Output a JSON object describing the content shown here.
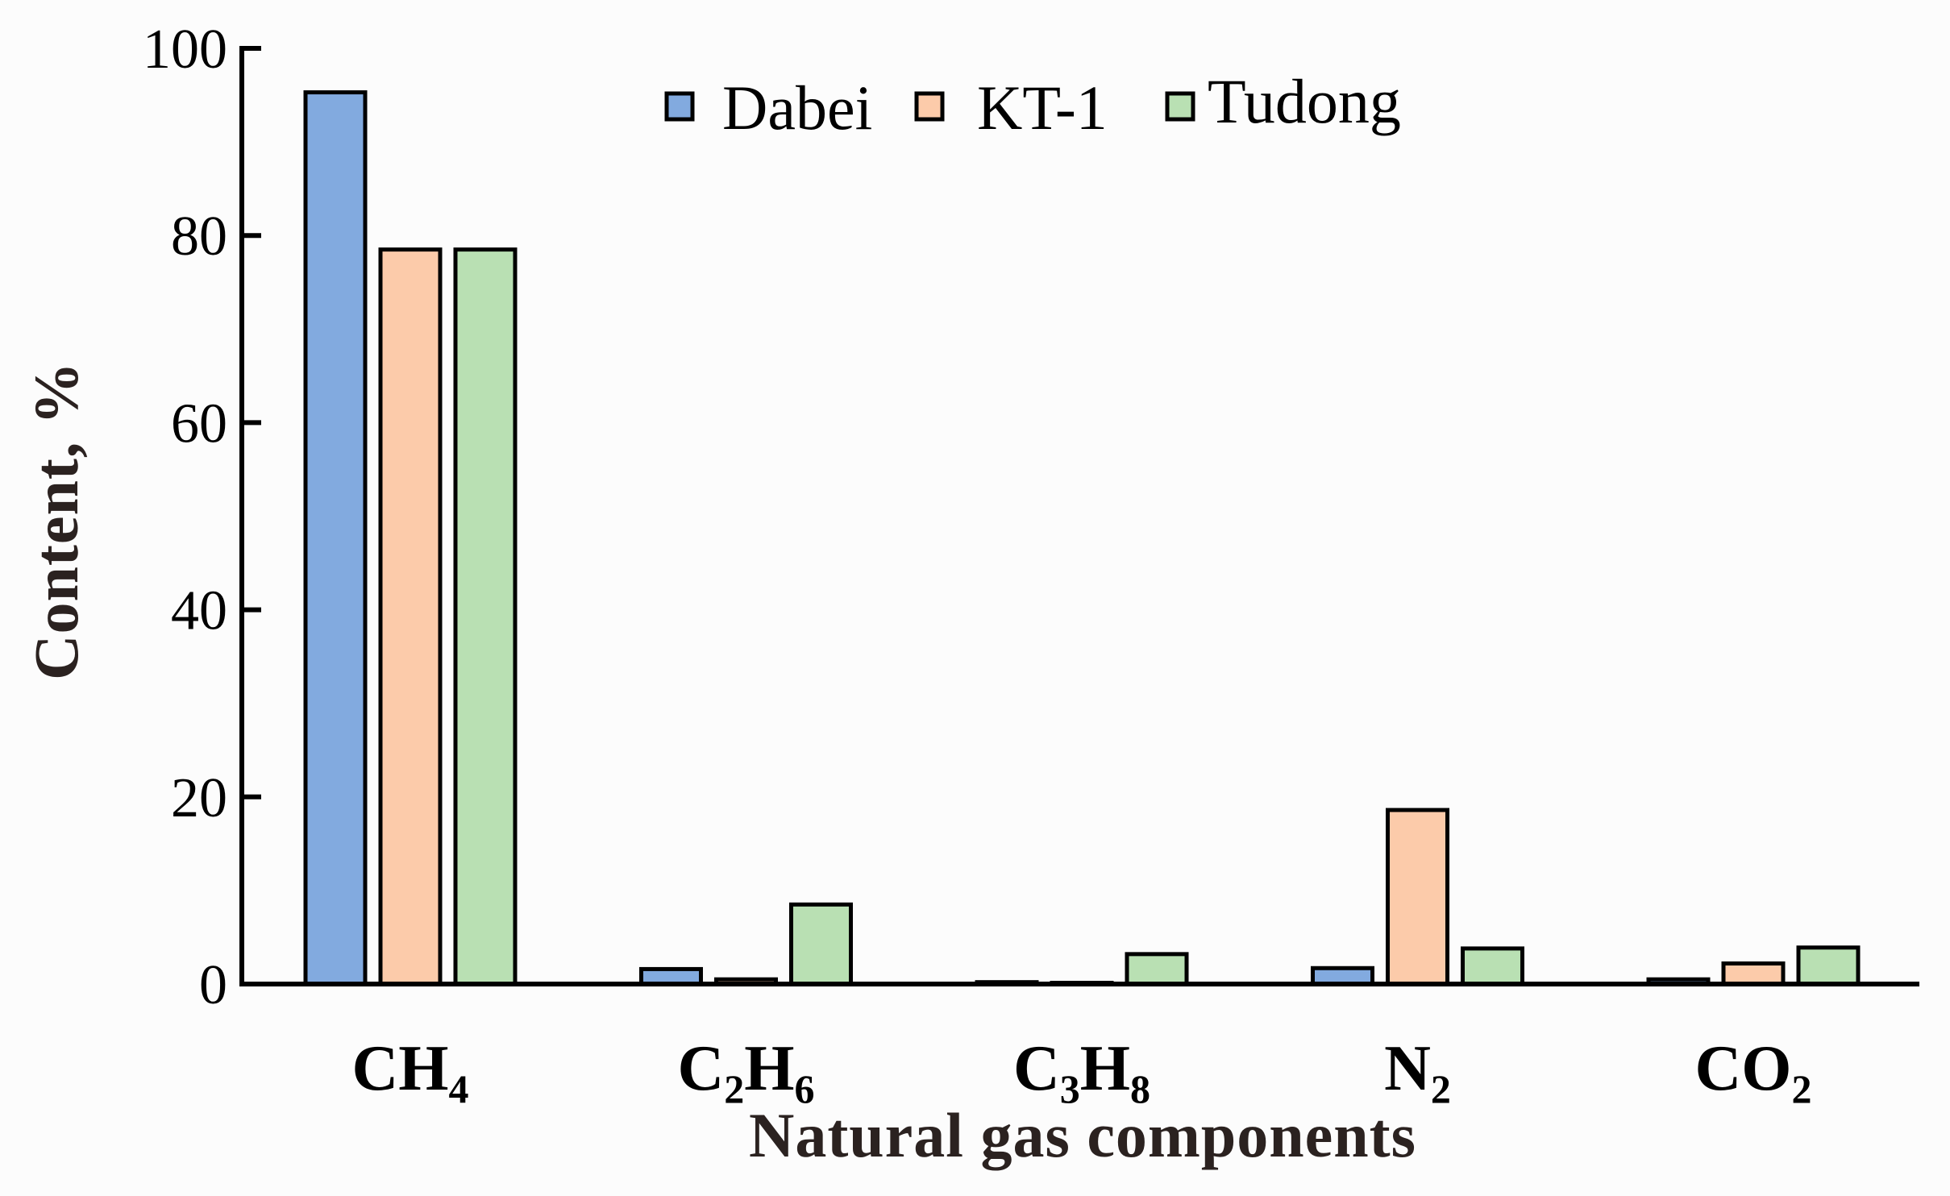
{
  "chart_data": {
    "type": "bar",
    "title": "",
    "xlabel": "Natural gas components",
    "ylabel": "Content, %",
    "ylim": [
      0,
      100
    ],
    "yticks": [
      0,
      20,
      40,
      60,
      80,
      100
    ],
    "grid": false,
    "legend_position": "top-center",
    "categories": [
      "CH4",
      "C2H6",
      "C3H8",
      "N2",
      "CO2"
    ],
    "category_labels": [
      [
        {
          "t": "CH",
          "sub": false
        },
        {
          "t": "4",
          "sub": true
        }
      ],
      [
        {
          "t": "C",
          "sub": false
        },
        {
          "t": "2",
          "sub": true
        },
        {
          "t": "H",
          "sub": false
        },
        {
          "t": "6",
          "sub": true
        }
      ],
      [
        {
          "t": "C",
          "sub": false
        },
        {
          "t": "3",
          "sub": true
        },
        {
          "t": "H",
          "sub": false
        },
        {
          "t": "8",
          "sub": true
        }
      ],
      [
        {
          "t": "N",
          "sub": false
        },
        {
          "t": "2",
          "sub": true
        }
      ],
      [
        {
          "t": "CO",
          "sub": false
        },
        {
          "t": "2",
          "sub": true
        }
      ]
    ],
    "series": [
      {
        "name": "Dabei",
        "color": "#82aadf",
        "values": [
          95.3,
          1.6,
          0.2,
          1.7,
          0.5
        ]
      },
      {
        "name": "KT-1",
        "color": "#fccbaa",
        "values": [
          78.5,
          0.5,
          0.1,
          18.6,
          2.2
        ]
      },
      {
        "name": "Tudong",
        "color": "#b9e0b3",
        "values": [
          78.5,
          8.5,
          3.2,
          3.8,
          3.9
        ]
      }
    ]
  },
  "legend": {
    "items": [
      {
        "label": "Dabei",
        "color": "#82aadf"
      },
      {
        "label": "KT-1",
        "color": "#fccbaa"
      },
      {
        "label": "Tudong",
        "color": "#b9e0b3"
      }
    ]
  },
  "axes": {
    "x_title": "Natural gas components",
    "y_title": "Content, %"
  }
}
